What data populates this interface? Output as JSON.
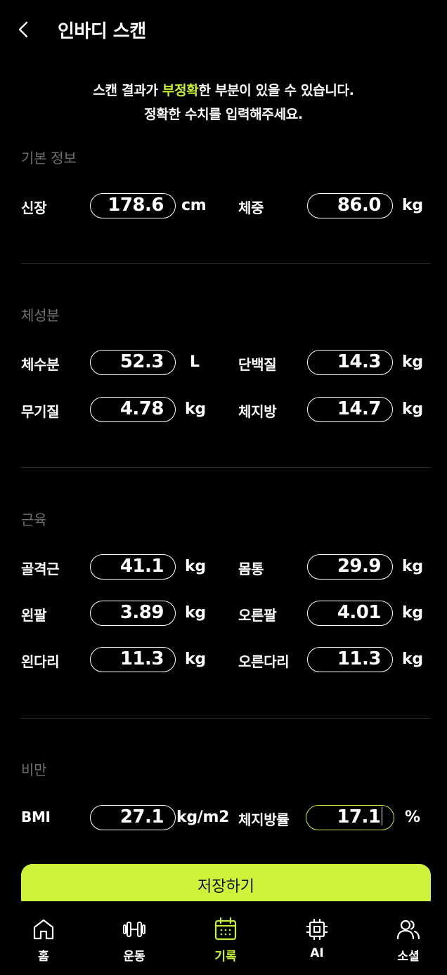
{
  "header": {
    "title": "인바디 스캔"
  },
  "notice": {
    "line1_before": "스캔 결과가 ",
    "line1_accent": "부정확",
    "line1_after": "한 부분이 있을 수 있습니다.",
    "line2": "정확한 수치를 입력해주세요."
  },
  "sections": {
    "basic": {
      "title": "기본 정보",
      "height": {
        "label": "신장",
        "value": "178.6",
        "unit": "cm"
      },
      "weight": {
        "label": "체중",
        "value": "86.0",
        "unit": "kg"
      }
    },
    "composition": {
      "title": "체성분",
      "water": {
        "label": "체수분",
        "value": "52.3",
        "unit": "L"
      },
      "protein": {
        "label": "단백질",
        "value": "14.3",
        "unit": "kg"
      },
      "mineral": {
        "label": "무기질",
        "value": "4.78",
        "unit": "kg"
      },
      "fat": {
        "label": "체지방",
        "value": "14.7",
        "unit": "kg"
      }
    },
    "muscle": {
      "title": "근육",
      "skeletal": {
        "label": "골격근",
        "value": "41.1",
        "unit": "kg"
      },
      "trunk": {
        "label": "몸통",
        "value": "29.9",
        "unit": "kg"
      },
      "left_arm": {
        "label": "왼팔",
        "value": "3.89",
        "unit": "kg"
      },
      "right_arm": {
        "label": "오른팔",
        "value": "4.01",
        "unit": "kg"
      },
      "left_leg": {
        "label": "왼다리",
        "value": "11.3",
        "unit": "kg"
      },
      "right_leg": {
        "label": "오른다리",
        "value": "11.3",
        "unit": "kg"
      }
    },
    "obesity": {
      "title": "비만",
      "bmi": {
        "label": "BMI",
        "value": "27.1",
        "unit": "kg/m2"
      },
      "body_fat_rate": {
        "label": "체지방률",
        "value": "17.1",
        "unit": "%"
      }
    }
  },
  "save_label": "저장하기",
  "tabs": [
    {
      "label": "홈",
      "icon": "home-icon"
    },
    {
      "label": "운동",
      "icon": "dumbbell-icon"
    },
    {
      "label": "기록",
      "icon": "calendar-icon",
      "active": true
    },
    {
      "label": "AI",
      "icon": "chip-icon"
    },
    {
      "label": "소셜",
      "icon": "people-icon"
    }
  ],
  "colors": {
    "accent": "#c6f135",
    "save_button": "#cff33a",
    "background": "#000000"
  }
}
